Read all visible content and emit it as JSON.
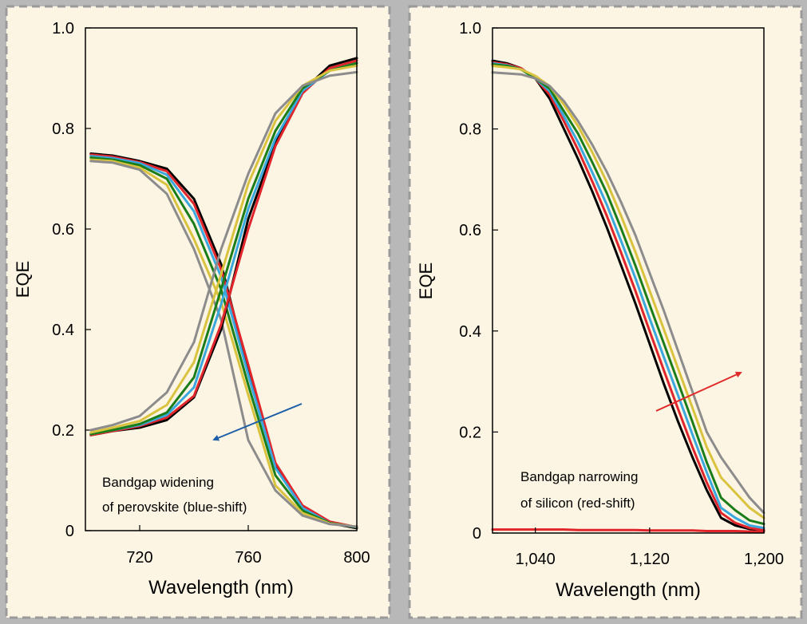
{
  "background": "#fdf5e3",
  "panels": [
    {
      "annotation_lines": [
        "Bandgap widening",
        "of perovskite (blue-shift)"
      ],
      "arrow_color": "#1f5fa8"
    },
    {
      "annotation_lines": [
        "Bandgap narrowing",
        "of silicon (red-shift)"
      ],
      "arrow_color": "#e02a2a"
    }
  ],
  "series_colors": [
    "#000000",
    "#e0262c",
    "#3aa8de",
    "#1a7d1a",
    "#d9c33e",
    "#8c8c8c"
  ],
  "chart_data": [
    {
      "type": "line",
      "xlabel": "Wavelength (nm)",
      "ylabel": "EQE",
      "xlim": [
        700,
        800
      ],
      "ylim": [
        0,
        1
      ],
      "x_ticks": [
        720,
        760,
        800
      ],
      "x_tick_labels": [
        "720",
        "760",
        "800"
      ],
      "y_ticks": [
        0,
        0.2,
        0.4,
        0.6,
        0.8,
        1.0
      ],
      "y_tick_labels": [
        "0",
        "0.2",
        "0.4",
        "0.6",
        "0.8",
        "1.0"
      ],
      "x": [
        702,
        710,
        720,
        730,
        740,
        750,
        760,
        770,
        780,
        790,
        800
      ],
      "series": [
        {
          "color": "#000000",
          "values": [
            0.75,
            0.746,
            0.735,
            0.72,
            0.66,
            0.53,
            0.32,
            0.13,
            0.045,
            0.015,
            0.005
          ]
        },
        {
          "color": "#e0262c",
          "values": [
            0.748,
            0.744,
            0.733,
            0.715,
            0.65,
            0.52,
            0.33,
            0.135,
            0.05,
            0.018,
            0.007
          ]
        },
        {
          "color": "#3aa8de",
          "values": [
            0.745,
            0.741,
            0.731,
            0.708,
            0.635,
            0.505,
            0.31,
            0.125,
            0.045,
            0.015,
            0.007
          ]
        },
        {
          "color": "#1a7d1a",
          "values": [
            0.742,
            0.738,
            0.727,
            0.7,
            0.61,
            0.48,
            0.29,
            0.11,
            0.04,
            0.015,
            0.007
          ]
        },
        {
          "color": "#d9c33e",
          "values": [
            0.738,
            0.735,
            0.722,
            0.688,
            0.58,
            0.455,
            0.27,
            0.09,
            0.035,
            0.014,
            0.008
          ]
        },
        {
          "color": "#8c8c8c",
          "values": [
            0.735,
            0.732,
            0.718,
            0.67,
            0.56,
            0.42,
            0.18,
            0.08,
            0.03,
            0.013,
            0.008
          ]
        },
        {
          "color": "#000000",
          "values": [
            0.19,
            0.198,
            0.205,
            0.22,
            0.265,
            0.4,
            0.62,
            0.77,
            0.875,
            0.925,
            0.94
          ]
        },
        {
          "color": "#e0262c",
          "values": [
            0.19,
            0.198,
            0.208,
            0.225,
            0.268,
            0.41,
            0.6,
            0.765,
            0.87,
            0.92,
            0.935
          ]
        },
        {
          "color": "#3aa8de",
          "values": [
            0.192,
            0.2,
            0.21,
            0.23,
            0.285,
            0.45,
            0.64,
            0.78,
            0.875,
            0.915,
            0.93
          ]
        },
        {
          "color": "#1a7d1a",
          "values": [
            0.192,
            0.2,
            0.212,
            0.235,
            0.305,
            0.48,
            0.66,
            0.795,
            0.88,
            0.915,
            0.93
          ]
        },
        {
          "color": "#d9c33e",
          "values": [
            0.195,
            0.205,
            0.218,
            0.25,
            0.335,
            0.51,
            0.69,
            0.815,
            0.885,
            0.915,
            0.925
          ]
        },
        {
          "color": "#8c8c8c",
          "values": [
            0.2,
            0.21,
            0.228,
            0.275,
            0.375,
            0.56,
            0.71,
            0.83,
            0.885,
            0.905,
            0.912
          ]
        }
      ]
    },
    {
      "type": "line",
      "xlabel": "Wavelength (nm)",
      "ylabel": "EQE",
      "xlim": [
        1010,
        1200
      ],
      "ylim": [
        0,
        1
      ],
      "x_ticks": [
        1040,
        1120,
        1200
      ],
      "x_tick_labels": [
        "1,040",
        "1,120",
        "1,200"
      ],
      "y_ticks": [
        0,
        0.2,
        0.4,
        0.6,
        0.8,
        1.0
      ],
      "y_tick_labels": [
        "0",
        "0.2",
        "0.4",
        "0.6",
        "0.8",
        "1.0"
      ],
      "x": [
        1010,
        1020,
        1030,
        1040,
        1050,
        1060,
        1070,
        1080,
        1090,
        1100,
        1110,
        1120,
        1130,
        1140,
        1150,
        1160,
        1170,
        1180,
        1190,
        1200
      ],
      "series": [
        {
          "color": "#000000",
          "values": [
            0.935,
            0.93,
            0.92,
            0.9,
            0.86,
            0.8,
            0.74,
            0.675,
            0.605,
            0.53,
            0.455,
            0.375,
            0.295,
            0.22,
            0.15,
            0.085,
            0.03,
            0.015,
            0.008,
            0.005
          ]
        },
        {
          "color": "#e0262c",
          "values": [
            0.932,
            0.928,
            0.92,
            0.9,
            0.868,
            0.815,
            0.758,
            0.695,
            0.628,
            0.555,
            0.48,
            0.4,
            0.322,
            0.245,
            0.17,
            0.1,
            0.04,
            0.02,
            0.01,
            0.006
          ]
        },
        {
          "color": "#3aa8de",
          "values": [
            0.93,
            0.926,
            0.918,
            0.9,
            0.875,
            0.825,
            0.773,
            0.713,
            0.65,
            0.578,
            0.505,
            0.425,
            0.348,
            0.272,
            0.195,
            0.12,
            0.05,
            0.03,
            0.015,
            0.01
          ]
        },
        {
          "color": "#1a7d1a",
          "values": [
            0.928,
            0.925,
            0.918,
            0.9,
            0.88,
            0.835,
            0.79,
            0.733,
            0.673,
            0.603,
            0.53,
            0.452,
            0.375,
            0.298,
            0.22,
            0.14,
            0.07,
            0.045,
            0.025,
            0.018
          ]
        },
        {
          "color": "#d9c33e",
          "values": [
            0.925,
            0.922,
            0.918,
            0.905,
            0.885,
            0.848,
            0.805,
            0.753,
            0.695,
            0.628,
            0.557,
            0.48,
            0.403,
            0.325,
            0.248,
            0.17,
            0.11,
            0.08,
            0.05,
            0.03
          ]
        },
        {
          "color": "#8c8c8c",
          "values": [
            0.912,
            0.91,
            0.908,
            0.9,
            0.885,
            0.855,
            0.815,
            0.768,
            0.715,
            0.655,
            0.59,
            0.515,
            0.44,
            0.36,
            0.28,
            0.2,
            0.15,
            0.11,
            0.07,
            0.04
          ]
        },
        {
          "color": "#e0262c",
          "values": [
            0.007,
            0.007,
            0.007,
            0.007,
            0.007,
            0.007,
            0.006,
            0.006,
            0.006,
            0.006,
            0.006,
            0.005,
            0.005,
            0.005,
            0.005,
            0.004,
            0.004,
            0.004,
            0.003,
            0.003
          ]
        }
      ]
    }
  ]
}
